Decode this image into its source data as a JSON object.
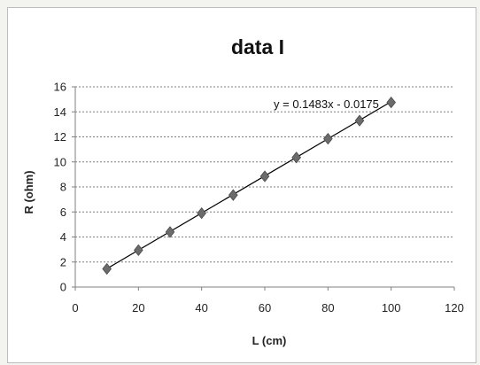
{
  "colors": {
    "background": "#ffffff",
    "gridline": "#7f7f7f",
    "trendline": "#000000",
    "marker": "#6b6b6b"
  },
  "chart_data": {
    "type": "scatter",
    "title": "data I",
    "xlabel": "L  (cm)",
    "ylabel": "R  (ohm)",
    "xlim": [
      0,
      120
    ],
    "ylim": [
      0,
      16
    ],
    "xticks": [
      0,
      20,
      40,
      60,
      80,
      100,
      120
    ],
    "yticks": [
      0,
      2,
      4,
      6,
      8,
      10,
      12,
      14,
      16
    ],
    "grid": "horizontal dashed",
    "marker": "diamond",
    "series": [
      {
        "x": [
          10,
          20,
          30,
          40,
          50,
          60,
          70,
          80,
          90,
          100
        ],
        "y": [
          1.45,
          2.95,
          4.4,
          5.9,
          7.35,
          8.85,
          10.35,
          11.85,
          13.3,
          14.75
        ]
      }
    ],
    "trendline": {
      "type": "linear",
      "slope": 0.1483,
      "intercept": -0.0175,
      "x_range": [
        10,
        100
      ],
      "label": "y = 0.1483x - 0.0175"
    }
  }
}
